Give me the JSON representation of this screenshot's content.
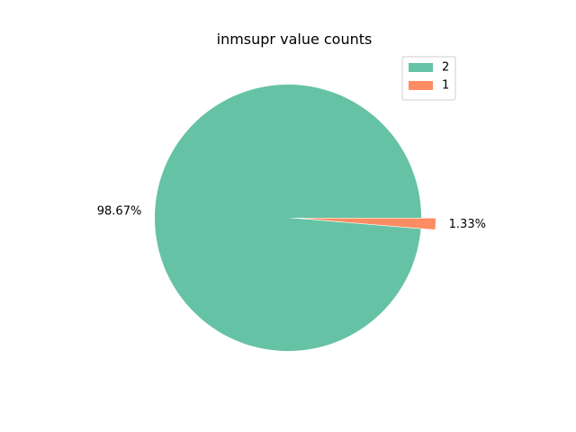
{
  "chart_data": {
    "type": "pie",
    "title": "inmsupr value counts",
    "slices": [
      {
        "label": "2",
        "value": 98.67,
        "pct_label": "98.67%",
        "color": "#66c2a5",
        "exploded": false
      },
      {
        "label": "1",
        "value": 1.33,
        "pct_label": "1.33%",
        "color": "#fc8d62",
        "exploded": true
      }
    ],
    "legend": {
      "placement": "top-right",
      "entries": [
        "2",
        "1"
      ]
    },
    "start_angle_deg": 0,
    "direction": "counterclockwise"
  }
}
